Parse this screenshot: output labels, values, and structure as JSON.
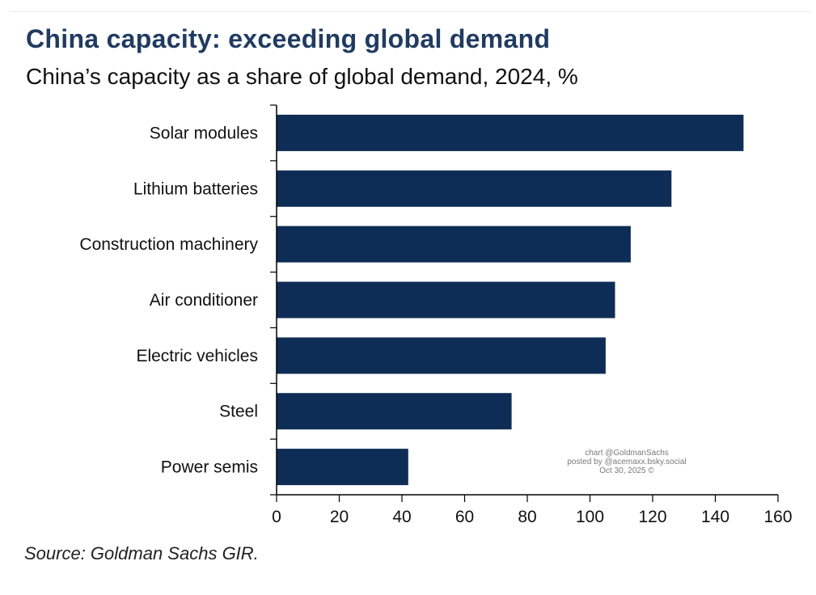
{
  "chart_data": {
    "type": "bar",
    "orientation": "horizontal",
    "title": "China capacity: exceeding global demand",
    "subtitle": "China’s capacity as a share of global demand, 2024, %",
    "categories": [
      "Solar modules",
      "Lithium batteries",
      "Construction machinery",
      "Air conditioner",
      "Electric vehicles",
      "Steel",
      "Power semis"
    ],
    "values": [
      149,
      126,
      113,
      108,
      105,
      75,
      42
    ],
    "xlim": [
      0,
      160
    ],
    "xticks": [
      "0",
      "20",
      "40",
      "60",
      "80",
      "100",
      "120",
      "140",
      "160"
    ],
    "xlabel": "",
    "ylabel": "",
    "grid": false,
    "colors": {
      "bar": "#0e2d56"
    },
    "source": "Source: Goldman Sachs GIR."
  },
  "watermark": {
    "line1": "chart @GoldmanSachs",
    "line2": "posted by @acemaxx.bsky.social",
    "line3": "Oct 30, 2025 ©"
  }
}
